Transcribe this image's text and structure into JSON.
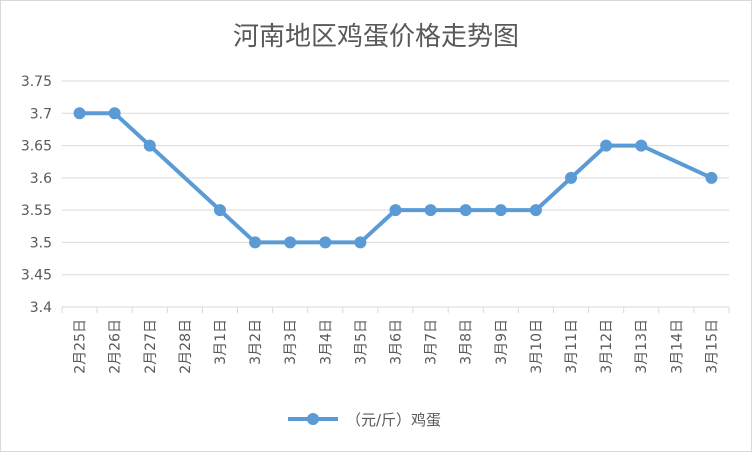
{
  "chart_data": {
    "type": "line",
    "title": "河南地区鸡蛋价格走势图",
    "xlabel": "",
    "ylabel": "",
    "ylim": [
      3.4,
      3.75
    ],
    "yticks": [
      3.4,
      3.45,
      3.5,
      3.55,
      3.6,
      3.65,
      3.7,
      3.75
    ],
    "ytick_labels": [
      "3.4",
      "3.45",
      "3.5",
      "3.55",
      "3.6",
      "3.65",
      "3.7",
      "3.75"
    ],
    "categories": [
      "2月25日",
      "2月26日",
      "2月27日",
      "2月28日",
      "3月1日",
      "3月2日",
      "3月3日",
      "3月4日",
      "3月5日",
      "3月6日",
      "3月7日",
      "3月8日",
      "3月9日",
      "3月10日",
      "3月11日",
      "3月12日",
      "3月13日",
      "3月14日",
      "3月15日"
    ],
    "series": [
      {
        "name": "（元/斤）鸡蛋",
        "color": "#5b9bd5",
        "values": [
          3.7,
          3.7,
          3.65,
          null,
          3.55,
          3.5,
          3.5,
          3.5,
          3.5,
          3.55,
          3.55,
          3.55,
          3.55,
          3.55,
          3.6,
          3.65,
          3.65,
          null,
          3.6
        ]
      }
    ],
    "grid": true,
    "legend_position": "bottom"
  }
}
